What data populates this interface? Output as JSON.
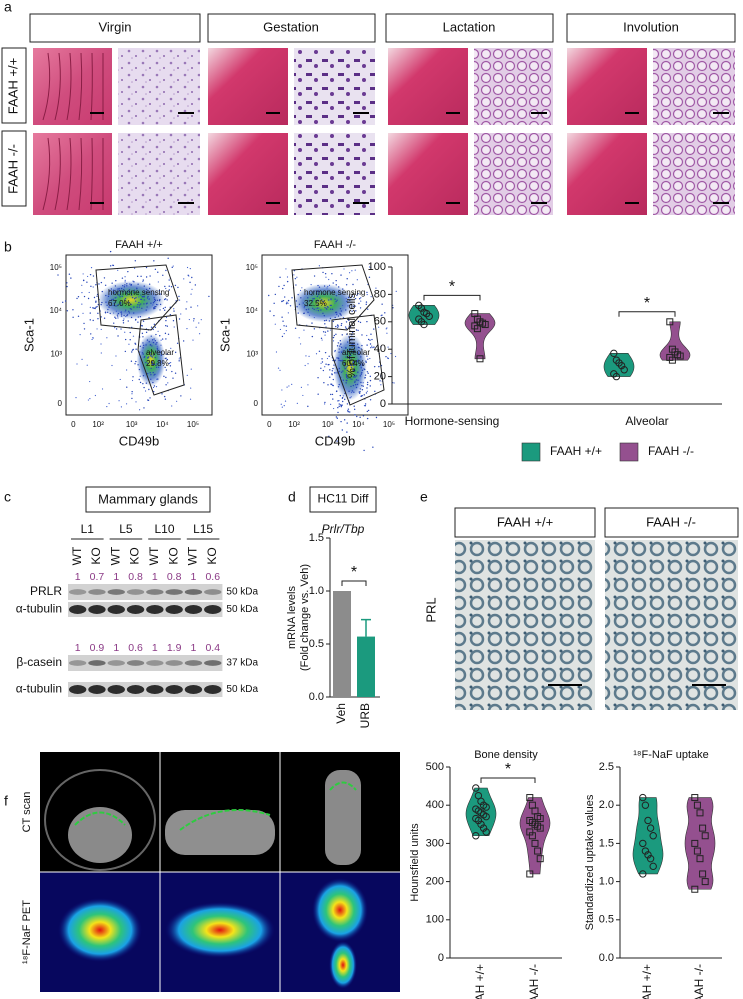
{
  "figure": {
    "panel_labels": [
      "a",
      "b",
      "c",
      "d",
      "e",
      "f"
    ],
    "a": {
      "stages": [
        "Virgin",
        "Gestation",
        "Lactation",
        "Involution"
      ],
      "genotypes": [
        "FAAH +/+",
        "FAAH -/-"
      ]
    },
    "b": {
      "plots": [
        {
          "title": "FAAH +/+",
          "gates": [
            {
              "name": "hormone sensing",
              "percent": "67.0%"
            },
            {
              "name": "alveolar",
              "percent": "29.8%"
            }
          ]
        },
        {
          "title": "FAAH -/-",
          "gates": [
            {
              "name": "hormone sensing",
              "percent": "32.5%"
            },
            {
              "name": "alveolar",
              "percent": "60.4%"
            }
          ]
        }
      ],
      "xlabel": "CD49b",
      "ylabel": "Sca-1",
      "yticks": [
        "10⁵",
        "10⁴",
        "10³",
        "0"
      ],
      "xticks": [
        "0",
        "10²",
        "10³",
        "10⁴",
        "10⁵"
      ]
    },
    "c": {
      "title": "Mammary glands",
      "lanes": [
        "L1",
        "L5",
        "L10",
        "L15"
      ],
      "genotypes": [
        "WT",
        "KO"
      ],
      "blots": [
        {
          "name": "PRLR",
          "quant": [
            1,
            0.7,
            1,
            0.8,
            1,
            0.8,
            1,
            0.6
          ],
          "size": "50 kDa"
        },
        {
          "name": "α-tubulin",
          "size": "50 kDa"
        },
        {
          "name": "β-casein",
          "quant": [
            1,
            0.9,
            1,
            0.6,
            1,
            1.9,
            1,
            0.4
          ],
          "size": "37 kDa"
        },
        {
          "name": "α-tubulin",
          "size": "50 kDa"
        }
      ]
    },
    "e": {
      "genotypes": [
        "FAAH +/+",
        "FAAH -/-"
      ],
      "stain": "PRL"
    },
    "f": {
      "rows": [
        "CT scan",
        "¹⁸F-NaF PET"
      ]
    }
  },
  "chart_data": [
    {
      "type": "violin",
      "ylabel": "% of luminal cells",
      "categories": [
        "Hormone-sensing",
        "Alveolar"
      ],
      "series": [
        {
          "name": "FAAH +/+",
          "color": "#1b9a7e",
          "values": [
            [
              72,
              70,
              67,
              66,
              64,
              62,
              60,
              58
            ],
            [
              37,
              32,
              30,
              28,
              25,
              22,
              20
            ]
          ]
        },
        {
          "name": "FAAH -/-",
          "color": "#94508f",
          "values": [
            [
              66,
              62,
              60,
              59,
              58,
              57,
              55,
              33
            ],
            [
              60,
              40,
              38,
              36,
              35,
              34,
              32
            ]
          ]
        }
      ],
      "ylim": [
        0,
        100
      ],
      "yticks": [
        0,
        20,
        40,
        60,
        80,
        100
      ],
      "annotations": [
        "*",
        "*"
      ],
      "legend": "bottom"
    },
    {
      "type": "bar",
      "title": "HC11 Diff",
      "subtitle": "Prlr/Tbp",
      "ylabel": [
        "mRNA levels",
        "(Fold change vs. Veh)"
      ],
      "categories": [
        "Veh",
        "URB"
      ],
      "values": [
        1.0,
        0.57
      ],
      "errors": [
        null,
        0.16
      ],
      "colors": [
        "#8c8c8c",
        "#1b9a7e"
      ],
      "ylim": [
        0,
        1.5
      ],
      "yticks": [
        {
          "value": 0,
          "label": "0.0"
        },
        0.5,
        {
          "value": 1,
          "label": "1.0"
        },
        1.5
      ],
      "annotations": [
        "*"
      ]
    },
    {
      "type": "violin",
      "title": "Bone density",
      "ylabel": "Hounsfield units",
      "categories": [
        "FAAH +/+",
        "FAAH -/-"
      ],
      "colors": [
        "#1b9a7e",
        "#94508f"
      ],
      "values": [
        [
          445,
          425,
          410,
          400,
          395,
          390,
          385,
          380,
          375,
          370,
          365,
          360,
          350,
          340,
          330,
          320
        ],
        [
          420,
          400,
          385,
          370,
          365,
          360,
          355,
          350,
          345,
          340,
          330,
          320,
          300,
          280,
          260,
          220
        ]
      ],
      "ylim": [
        0,
        500
      ],
      "yticks": [
        0,
        100,
        200,
        300,
        400,
        500
      ],
      "annotations": [
        "*"
      ]
    },
    {
      "type": "violin",
      "title": "¹⁸F-NaF uptake",
      "ylabel": "Standardized uptake values",
      "categories": [
        "FAAH +/+",
        "FAAH -/-"
      ],
      "colors": [
        "#1b9a7e",
        "#94508f"
      ],
      "values": [
        [
          2.1,
          2.0,
          1.8,
          1.7,
          1.6,
          1.5,
          1.4,
          1.35,
          1.3,
          1.2,
          1.1
        ],
        [
          2.1,
          2.0,
          1.9,
          1.7,
          1.6,
          1.5,
          1.4,
          1.3,
          1.1,
          1.0,
          0.9
        ]
      ],
      "ylim": [
        0,
        2.5
      ],
      "yticks": [
        {
          "value": 0,
          "label": "0.0"
        },
        0.5,
        {
          "value": 1,
          "label": "1.0"
        },
        1.5,
        {
          "value": 2,
          "label": "2.0"
        },
        2.5
      ],
      "annotations": []
    }
  ]
}
